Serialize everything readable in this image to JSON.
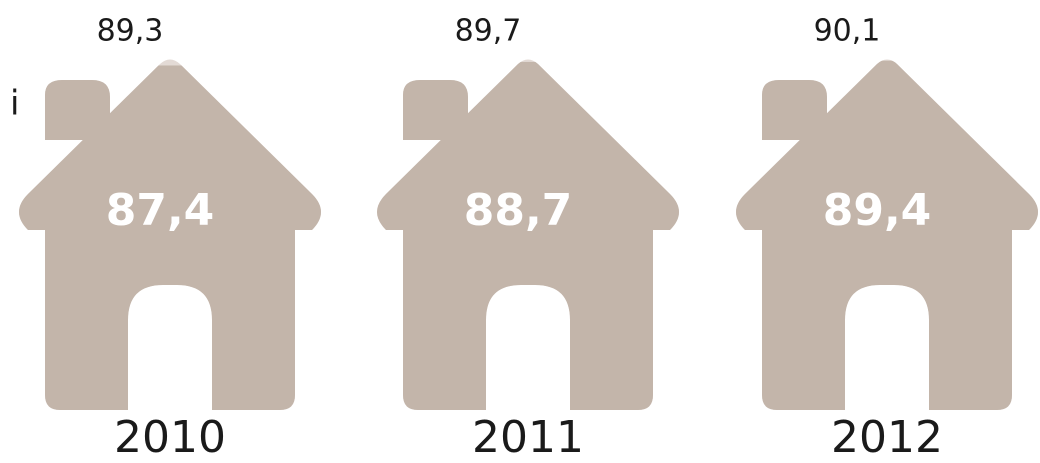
{
  "chart_data": {
    "type": "pictorial",
    "side_text": "i",
    "categories": [
      "2010",
      "2011",
      "2012"
    ],
    "series": [
      {
        "color": "#e3dad5",
        "values": [
          89.3,
          89.7,
          90.1
        ],
        "value_labels": [
          "89,3",
          "89,7",
          "90,1"
        ]
      },
      {
        "color": "#c3b5aa",
        "values": [
          87.4,
          88.7,
          89.4
        ],
        "value_labels": [
          "87,4",
          "88,7",
          "89,4"
        ]
      }
    ]
  }
}
